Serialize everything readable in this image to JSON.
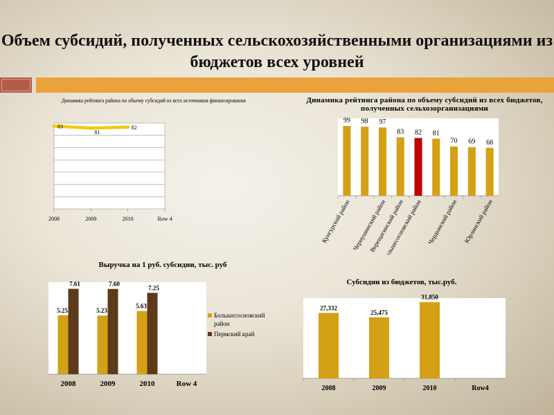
{
  "slide": {
    "title": "Объем субсидий, полученных сельскохозяйственными организациями из бюджетов всех уровней"
  },
  "chart_data": [
    {
      "type": "line",
      "title": "Динамика рейтинга района по объему субсидий из всех источников финансирования",
      "categories": [
        "2008",
        "2009",
        "2010",
        "Row 4"
      ],
      "series": [
        {
          "values": [
            83,
            81,
            82,
            null
          ],
          "labels": [
            "83",
            "81",
            "82",
            ""
          ]
        }
      ],
      "ylim": [
        0,
        86
      ],
      "grid": true,
      "colors": {
        "line": "#f2cb0f"
      }
    },
    {
      "type": "bar",
      "title": "Динамика рейтинга района по объему субсидий из всех бюджетов, полученных сельхозорганизациями",
      "categories": [
        "Кунгурский район",
        "Чернушинский район",
        "Верещагинский район",
        "Большесосновский район",
        "Чердынский район",
        "Юрлинский район",
        "",
        "",
        ""
      ],
      "tick_labels": [
        {
          "text": "Кунгурский район",
          "slot": 0
        },
        {
          "text": "Чернушинский район",
          "slot": 2
        },
        {
          "text": "Верещагинский район",
          "slot": 3
        },
        {
          "text": "Большесосновский район",
          "slot": 4
        },
        {
          "text": "Чердынский район",
          "slot": 6
        },
        {
          "text": "Юрлинский район",
          "slot": 8
        }
      ],
      "values": [
        99,
        98,
        97,
        83,
        82,
        81,
        70,
        69,
        68
      ],
      "labels": [
        "99",
        "98",
        "97",
        "83",
        "82",
        "81",
        "70",
        "69",
        "68"
      ],
      "highlight_index": 4,
      "ylim": [
        0,
        110
      ],
      "colors": {
        "bar": "#d4a016",
        "highlight": "#c00000"
      }
    },
    {
      "type": "bar",
      "title": "Выручка на 1 руб. субсидии, тыс. руб",
      "categories": [
        "2008",
        "2009",
        "2010",
        "Row 4"
      ],
      "series": [
        {
          "name": "Большесосновский район",
          "values": [
            5.25,
            5.23,
            5.63,
            null
          ],
          "labels": [
            "5.25",
            "5.23",
            "5.63",
            ""
          ]
        },
        {
          "name": "Пермский край",
          "values": [
            7.61,
            7.6,
            7.25,
            null
          ],
          "labels": [
            "7.61",
            "7.60",
            "7.25",
            ""
          ]
        }
      ],
      "legend": "right",
      "ylim": [
        0,
        8.2
      ],
      "colors": {
        "s1": "#d4a016",
        "s2": "#5c3a1a"
      }
    },
    {
      "type": "bar",
      "title": "Субсидии из бюджетов, тыс.руб.",
      "categories": [
        "2008",
        "2009",
        "2010",
        "Row4"
      ],
      "values": [
        27332,
        25475,
        31850,
        null
      ],
      "labels": [
        "27,332",
        "25,475",
        "31,850",
        ""
      ],
      "ylim": [
        0,
        33500
      ],
      "colors": {
        "bar": "#d4a016"
      }
    }
  ]
}
